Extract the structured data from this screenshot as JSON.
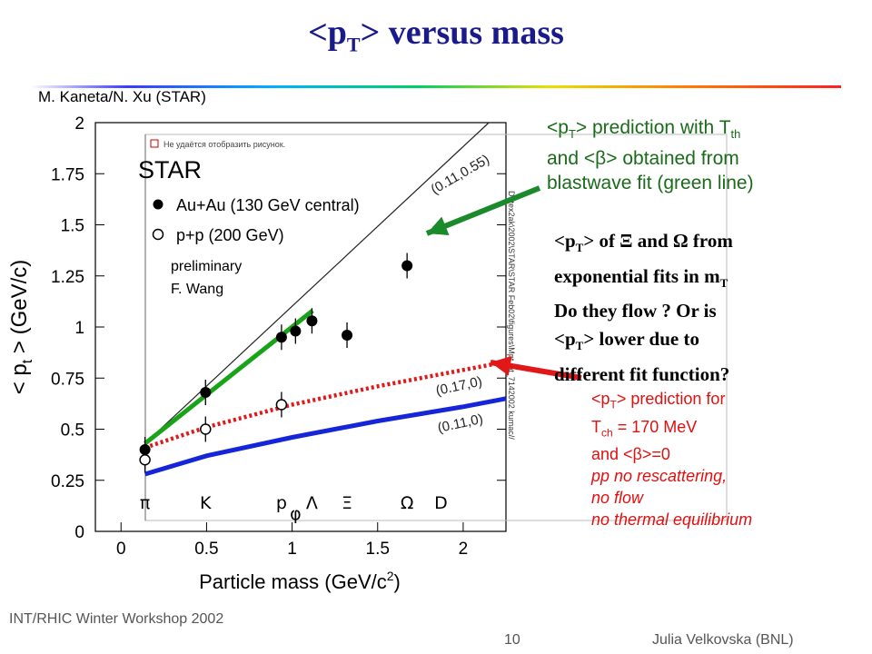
{
  "slide": {
    "title_lt": "<p",
    "title_sub": "T",
    "title_rest": "> versus mass",
    "credit": "M. Kaneta/N. Xu (STAR)",
    "footer_left": "INT/RHIC Winter Workshop 2002",
    "page_number": "10",
    "footer_right": "Julia Velkovska (BNL)"
  },
  "notes": {
    "green_lines": [
      "<p",
      "T",
      "> prediction with T",
      "th",
      "and <",
      "β",
      "> obtained from",
      "blastwave fit (green line)"
    ],
    "bold_lines": [
      "<p",
      "T",
      "> of Ξ and Ω from",
      "exponential fits in m",
      "T",
      "Do they flow ? Or is",
      "<p",
      "T",
      "> lower due to",
      "different fit function?"
    ],
    "red_lines": [
      "<p",
      "T",
      "> prediction for",
      "T",
      "ch",
      " = 170 MeV",
      "and <",
      "β",
      ">=0",
      "pp no rescattering,",
      "no flow",
      "no thermal equilibrium"
    ]
  },
  "chart_data": {
    "type": "scatter",
    "xlabel": "Particle mass (GeV/c",
    "xlabel_sup": "2",
    "xlabel_close": ")",
    "ylabel": "< p",
    "ylabel_sub": "t",
    "ylabel_rest": " > (GeV/c)",
    "xlim": [
      -0.15,
      2.25
    ],
    "ylim": [
      0,
      2
    ],
    "xticks": [
      "0",
      "0.5",
      "1",
      "1.5",
      "2"
    ],
    "xtick_values": [
      0,
      0.5,
      1,
      1.5,
      2
    ],
    "yticks": [
      "0",
      "0.25",
      "0.5",
      "0.75",
      "1",
      "1.25",
      "1.5",
      "1.75",
      "2"
    ],
    "ytick_values": [
      0,
      0.25,
      0.5,
      0.75,
      1,
      1.25,
      1.5,
      1.75,
      2
    ],
    "particle_labels": [
      {
        "label": "π",
        "mass": 0.14
      },
      {
        "label": "K",
        "mass": 0.494
      },
      {
        "label": "p",
        "mass": 0.938
      },
      {
        "label": "φ",
        "mass": 1.02
      },
      {
        "label": "Λ",
        "mass": 1.116
      },
      {
        "label": "Ξ",
        "mass": 1.321
      },
      {
        "label": "Ω",
        "mass": 1.672
      },
      {
        "label": "D",
        "mass": 1.87
      }
    ],
    "plot_header": "STAR",
    "legend": [
      {
        "name": "Au+Au (130 GeV central)",
        "marker": "filled-circle"
      },
      {
        "name": "p+p (200 GeV)",
        "marker": "open-circle"
      }
    ],
    "annotation_lines": [
      "preliminary",
      "F. Wang"
    ],
    "image_error_text": "Не удаётся отобразить рисунок.",
    "file_path_text": "D:\\tex2ak\\2002\\STAR\\STAR Feb02\\figures\\Mpt_pt_7142002 kumac//",
    "series": [
      {
        "name": "Au+Au (130 GeV central)",
        "marker": "filled-circle",
        "points": [
          {
            "x": 0.14,
            "y": 0.4
          },
          {
            "x": 0.494,
            "y": 0.68
          },
          {
            "x": 0.938,
            "y": 0.95
          },
          {
            "x": 1.02,
            "y": 0.98
          },
          {
            "x": 1.116,
            "y": 1.03
          },
          {
            "x": 1.321,
            "y": 0.96
          },
          {
            "x": 1.672,
            "y": 1.3
          }
        ]
      },
      {
        "name": "p+p (200 GeV)",
        "marker": "open-circle",
        "points": [
          {
            "x": 0.14,
            "y": 0.35
          },
          {
            "x": 0.494,
            "y": 0.5
          },
          {
            "x": 0.938,
            "y": 0.62
          }
        ]
      }
    ],
    "curves": [
      {
        "label": "(0.11,0.55)",
        "style": "thin-black",
        "points": [
          [
            0.14,
            0.43
          ],
          [
            2.15,
            2.0
          ]
        ]
      },
      {
        "label": "",
        "style": "thick-green",
        "points": [
          [
            0.14,
            0.43
          ],
          [
            1.12,
            1.08
          ]
        ]
      },
      {
        "label": "(0.17,0)",
        "style": "dotted-red",
        "points": [
          [
            0.14,
            0.41
          ],
          [
            0.5,
            0.51
          ],
          [
            1.0,
            0.62
          ],
          [
            1.5,
            0.71
          ],
          [
            2.0,
            0.79
          ],
          [
            2.25,
            0.83
          ]
        ]
      },
      {
        "label": "(0.11,0)",
        "style": "thick-blue",
        "points": [
          [
            0.14,
            0.28
          ],
          [
            0.5,
            0.37
          ],
          [
            1.0,
            0.46
          ],
          [
            1.5,
            0.54
          ],
          [
            2.0,
            0.61
          ],
          [
            2.25,
            0.65
          ]
        ]
      }
    ],
    "colors": {
      "title": "#1a1a8c",
      "green_curve": "#19a319",
      "red_curve": "#e21818",
      "blue_curve": "#1426d8",
      "green_arrow": "#1a8a2a",
      "red_arrow": "#e21818"
    }
  }
}
